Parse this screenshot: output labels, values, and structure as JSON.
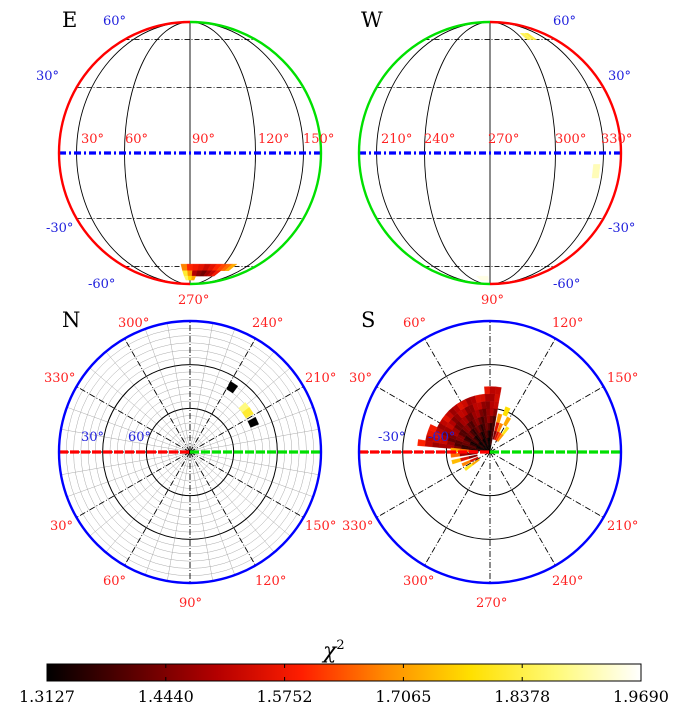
{
  "chart_data": [
    {
      "type": "heatmap",
      "projection": "orthographic-globe",
      "panel_label": "E",
      "meridian_labels": [
        "30°",
        "60°",
        "90°",
        "120°",
        "150°"
      ],
      "bottom_label": "270°",
      "latitude_labels_left": [
        "30°",
        "-30°",
        "-60°"
      ],
      "latitude_labels_right": [
        "60°"
      ],
      "equator_style": "blue dash-dot",
      "cells": [
        {
          "lon": 85,
          "lat": -61,
          "value": 1.68
        },
        {
          "lon": 90,
          "lat": -61,
          "value": 1.6
        },
        {
          "lon": 95,
          "lat": -61,
          "value": 1.58
        },
        {
          "lon": 100,
          "lat": -61,
          "value": 1.56
        },
        {
          "lon": 105,
          "lat": -61,
          "value": 1.53
        },
        {
          "lon": 110,
          "lat": -61,
          "value": 1.56
        },
        {
          "lon": 115,
          "lat": -61,
          "value": 1.6
        },
        {
          "lon": 120,
          "lat": -61,
          "value": 1.63
        },
        {
          "lon": 125,
          "lat": -61,
          "value": 1.66
        },
        {
          "lon": 130,
          "lat": -61,
          "value": 1.72
        },
        {
          "lon": 85,
          "lat": -67,
          "value": 1.82
        },
        {
          "lon": 90,
          "lat": -67,
          "value": 1.7
        },
        {
          "lon": 95,
          "lat": -67,
          "value": 1.5
        },
        {
          "lon": 100,
          "lat": -67,
          "value": 1.46
        },
        {
          "lon": 105,
          "lat": -67,
          "value": 1.43
        },
        {
          "lon": 110,
          "lat": -67,
          "value": 1.48
        },
        {
          "lon": 115,
          "lat": -67,
          "value": 1.52
        },
        {
          "lon": 120,
          "lat": -67,
          "value": 1.58
        },
        {
          "lon": 85,
          "lat": -73,
          "value": 1.86
        },
        {
          "lon": 90,
          "lat": -73,
          "value": 1.78
        },
        {
          "lon": 95,
          "lat": -73,
          "value": 1.72
        }
      ]
    },
    {
      "type": "heatmap",
      "projection": "orthographic-globe",
      "panel_label": "W",
      "meridian_labels": [
        "210°",
        "240°",
        "270°",
        "300°",
        "330°"
      ],
      "bottom_label": "90°",
      "latitude_labels_left": [],
      "latitude_labels_right": [
        "60°",
        "30°",
        "-30°",
        "-60°"
      ],
      "equator_style": "blue dash-dot",
      "cells": [
        {
          "lon": 307,
          "lat": 63,
          "value": 1.85
        },
        {
          "lon": 313,
          "lat": 63,
          "value": 1.83
        },
        {
          "lon": 325,
          "lat": -8,
          "value": 1.92
        },
        {
          "lon": 255,
          "lat": -73,
          "value": 1.95
        },
        {
          "lon": 260,
          "lat": -73,
          "value": 1.95
        },
        {
          "lon": 265,
          "lat": -73,
          "value": 1.95
        }
      ]
    },
    {
      "type": "heatmap",
      "projection": "polar",
      "panel_label": "N",
      "fine_grid": true,
      "angle_labels": [
        "300°",
        "240°",
        "210°",
        "150°",
        "120°",
        "90°",
        "60°",
        "30°",
        "330°"
      ],
      "radial_labels": [
        "30°",
        "60°"
      ],
      "axis_line": "red left, green right",
      "cells": [
        {
          "az": 155,
          "colat": 48,
          "value": 1.31
        },
        {
          "az": 123,
          "colat": 53,
          "value": 1.31
        },
        {
          "az": 141,
          "colat": 48,
          "value": 1.88
        },
        {
          "az": 146,
          "colat": 48,
          "value": 1.82
        }
      ]
    },
    {
      "type": "heatmap",
      "projection": "polar",
      "panel_label": "S",
      "fine_grid": false,
      "angle_labels": [
        "60°",
        "120°",
        "30°",
        "150°",
        "330°",
        "210°",
        "300°",
        "240°",
        "270°"
      ],
      "radial_labels": [
        "-30°",
        "-60°"
      ],
      "axis_line": "red left, green right",
      "wedge": {
        "az_min": 5,
        "az_max": 100,
        "colat_max": 53,
        "value_center": 1.31,
        "value_edge": 1.62
      },
      "cells": [
        {
          "az": 3,
          "colat": 12,
          "value": 1.6
        },
        {
          "az": 3,
          "colat": 18,
          "value": 1.66
        },
        {
          "az": 3,
          "colat": 24,
          "value": 1.72
        },
        {
          "az": 355,
          "colat": 12,
          "value": 1.4
        },
        {
          "az": 355,
          "colat": 18,
          "value": 1.48
        },
        {
          "az": 355,
          "colat": 24,
          "value": 1.66
        },
        {
          "az": 345,
          "colat": 12,
          "value": 1.45
        },
        {
          "az": 345,
          "colat": 18,
          "value": 1.55
        },
        {
          "az": 345,
          "colat": 24,
          "value": 1.74
        },
        {
          "az": 335,
          "colat": 12,
          "value": 1.55
        },
        {
          "az": 335,
          "colat": 18,
          "value": 1.68
        },
        {
          "az": 325,
          "colat": 12,
          "value": 1.72
        },
        {
          "az": 325,
          "colat": 18,
          "value": 1.8
        },
        {
          "az": 105,
          "colat": 12,
          "value": 1.45
        },
        {
          "az": 105,
          "colat": 18,
          "value": 1.55
        },
        {
          "az": 105,
          "colat": 24,
          "value": 1.7
        },
        {
          "az": 112,
          "colat": 12,
          "value": 1.55
        },
        {
          "az": 112,
          "colat": 18,
          "value": 1.68
        },
        {
          "az": 112,
          "colat": 30,
          "value": 1.78
        },
        {
          "az": 119,
          "colat": 12,
          "value": 1.62
        },
        {
          "az": 119,
          "colat": 24,
          "value": 1.72
        },
        {
          "az": 126,
          "colat": 12,
          "value": 1.7
        },
        {
          "az": 126,
          "colat": 18,
          "value": 1.8
        }
      ]
    }
  ],
  "colorbar": {
    "label": "χ",
    "label_superscript": "2",
    "ticks": [
      "1.3127",
      "1.4440",
      "1.5752",
      "1.7065",
      "1.8378",
      "1.9690"
    ],
    "range": [
      1.3127,
      1.969
    ],
    "colormap": "hot",
    "stops": [
      "#000000",
      "#5a0000",
      "#b40000",
      "#ff1e00",
      "#ff8c00",
      "#ffe000",
      "#fffa78",
      "#ffffff"
    ]
  },
  "colors": {
    "red": "#ff0000",
    "green": "#00e000",
    "blue": "#0000ff",
    "label_red": "#ff2222",
    "label_blue": "#2222dd"
  }
}
